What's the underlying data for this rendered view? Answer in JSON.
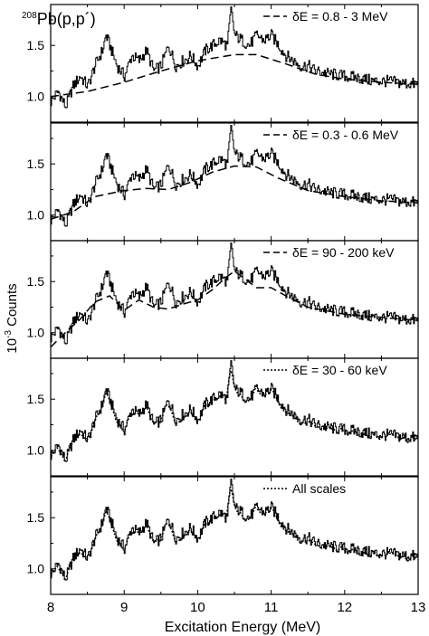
{
  "figure": {
    "label_sup": "208",
    "label_text": "Pb(p,p´)",
    "ylabel_prefix": "10",
    "ylabel_sup": "-3",
    "ylabel_suffix": " Counts",
    "xlabel": "Excitation Energy (MeV)"
  },
  "chart_data": {
    "type": "line",
    "xlim": [
      8,
      13
    ],
    "x_ticks": [
      "8",
      "9",
      "10",
      "11",
      "12",
      "13"
    ],
    "xlabel": "Excitation Energy (MeV)",
    "ylabel": "10^-3 Counts",
    "grid": false,
    "panels": [
      {
        "legend": "δE = 0.8 - 3 MeV",
        "legend_style": "dashed",
        "ylim": [
          0.75,
          1.9
        ],
        "y_ticks": [
          1.0,
          1.5
        ],
        "smooth": [
          [
            8.0,
            1.0
          ],
          [
            8.5,
            1.05
          ],
          [
            9.0,
            1.14
          ],
          [
            9.5,
            1.25
          ],
          [
            10.0,
            1.35
          ],
          [
            10.5,
            1.41
          ],
          [
            10.8,
            1.41
          ],
          [
            11.2,
            1.32
          ],
          [
            11.6,
            1.22
          ],
          [
            12.0,
            1.17
          ],
          [
            12.5,
            1.14
          ],
          [
            13.0,
            1.12
          ]
        ]
      },
      {
        "legend": "δE = 0.3 - 0.6 MeV",
        "legend_style": "dashed",
        "ylim": [
          0.75,
          1.9
        ],
        "y_ticks": [
          1.0,
          1.5
        ],
        "smooth": [
          [
            8.0,
            0.96
          ],
          [
            8.3,
            1.03
          ],
          [
            8.6,
            1.18
          ],
          [
            9.0,
            1.24
          ],
          [
            9.3,
            1.26
          ],
          [
            9.6,
            1.25
          ],
          [
            9.9,
            1.32
          ],
          [
            10.2,
            1.42
          ],
          [
            10.5,
            1.48
          ],
          [
            10.8,
            1.47
          ],
          [
            11.1,
            1.36
          ],
          [
            11.5,
            1.24
          ],
          [
            12.0,
            1.18
          ],
          [
            12.5,
            1.14
          ],
          [
            13.0,
            1.12
          ]
        ]
      },
      {
        "legend": "δE = 90 - 200 keV",
        "legend_style": "dashed",
        "ylim": [
          0.75,
          1.9
        ],
        "y_ticks": [
          1.0,
          1.5
        ],
        "smooth": [
          [
            8.0,
            0.86
          ],
          [
            8.2,
            1.0
          ],
          [
            8.4,
            1.13
          ],
          [
            8.6,
            1.3
          ],
          [
            8.8,
            1.36
          ],
          [
            9.0,
            1.22
          ],
          [
            9.2,
            1.32
          ],
          [
            9.4,
            1.25
          ],
          [
            9.6,
            1.23
          ],
          [
            9.8,
            1.28
          ],
          [
            10.0,
            1.32
          ],
          [
            10.2,
            1.42
          ],
          [
            10.4,
            1.55
          ],
          [
            10.5,
            1.6
          ],
          [
            10.6,
            1.55
          ],
          [
            10.8,
            1.44
          ],
          [
            11.0,
            1.44
          ],
          [
            11.2,
            1.36
          ],
          [
            11.5,
            1.25
          ],
          [
            12.0,
            1.18
          ],
          [
            12.5,
            1.15
          ],
          [
            13.0,
            1.12
          ]
        ]
      },
      {
        "legend": "δE = 30 - 60 keV",
        "legend_style": "dotted",
        "ylim": [
          0.75,
          1.9
        ],
        "y_ticks": [
          1.0,
          1.5
        ],
        "smooth": []
      },
      {
        "legend": "All scales",
        "legend_style": "dotted",
        "ylim": [
          0.75,
          1.9
        ],
        "y_ticks": [
          1.0,
          1.5
        ],
        "smooth": []
      }
    ],
    "spectrum_shape": [
      [
        8.0,
        0.95
      ],
      [
        8.1,
        1.05
      ],
      [
        8.2,
        0.9
      ],
      [
        8.3,
        1.1
      ],
      [
        8.4,
        1.2
      ],
      [
        8.5,
        1.1
      ],
      [
        8.6,
        1.3
      ],
      [
        8.7,
        1.45
      ],
      [
        8.75,
        1.6
      ],
      [
        8.8,
        1.5
      ],
      [
        8.9,
        1.3
      ],
      [
        9.0,
        1.2
      ],
      [
        9.1,
        1.4
      ],
      [
        9.2,
        1.35
      ],
      [
        9.3,
        1.45
      ],
      [
        9.4,
        1.25
      ],
      [
        9.5,
        1.3
      ],
      [
        9.6,
        1.5
      ],
      [
        9.7,
        1.3
      ],
      [
        9.8,
        1.35
      ],
      [
        9.9,
        1.4
      ],
      [
        10.0,
        1.3
      ],
      [
        10.1,
        1.45
      ],
      [
        10.2,
        1.5
      ],
      [
        10.3,
        1.55
      ],
      [
        10.4,
        1.5
      ],
      [
        10.45,
        1.85
      ],
      [
        10.5,
        1.6
      ],
      [
        10.6,
        1.55
      ],
      [
        10.7,
        1.5
      ],
      [
        10.8,
        1.6
      ],
      [
        10.9,
        1.55
      ],
      [
        11.0,
        1.6
      ],
      [
        11.1,
        1.5
      ],
      [
        11.2,
        1.4
      ],
      [
        11.3,
        1.35
      ],
      [
        11.4,
        1.3
      ],
      [
        11.5,
        1.3
      ],
      [
        11.6,
        1.25
      ],
      [
        11.8,
        1.22
      ],
      [
        12.0,
        1.2
      ],
      [
        12.2,
        1.18
      ],
      [
        12.4,
        1.15
      ],
      [
        12.6,
        1.15
      ],
      [
        12.8,
        1.13
      ],
      [
        13.0,
        1.12
      ]
    ]
  }
}
